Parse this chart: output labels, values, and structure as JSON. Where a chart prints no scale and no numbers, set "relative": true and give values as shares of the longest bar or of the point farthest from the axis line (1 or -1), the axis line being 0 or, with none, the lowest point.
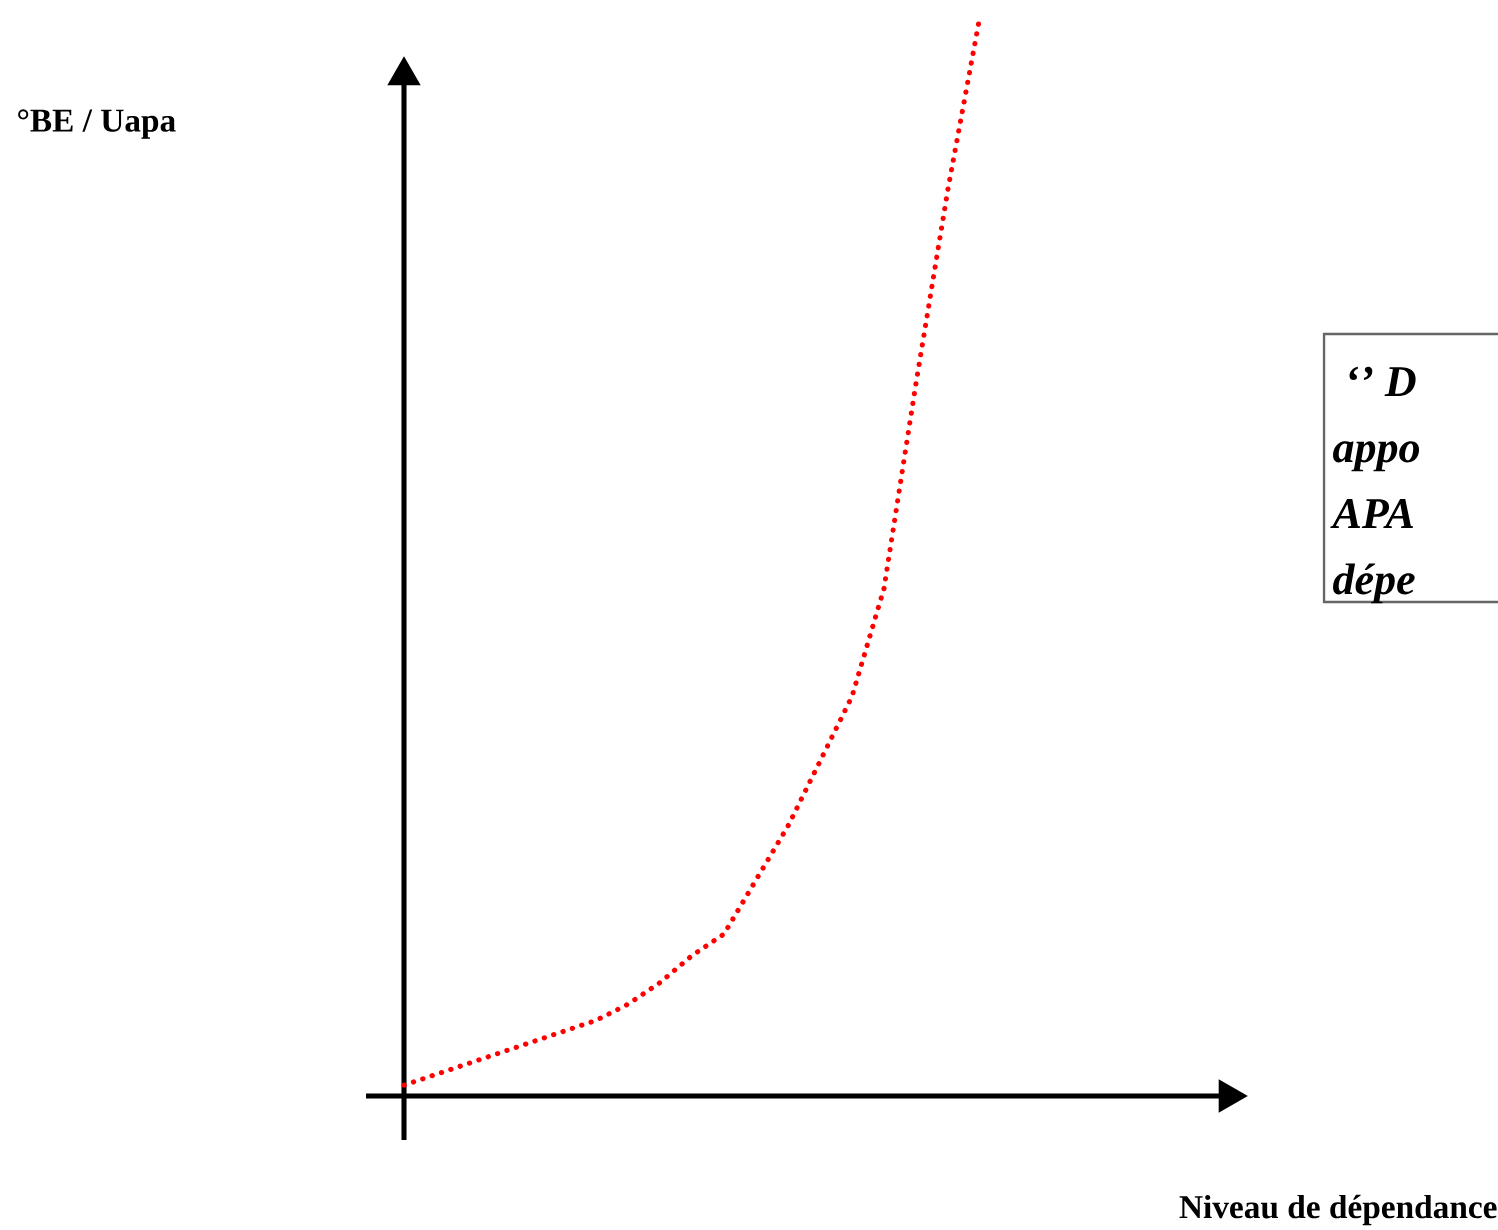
{
  "chart_data": {
    "type": "line",
    "relative": true,
    "categories": [
      null,
      null,
      null,
      null,
      null,
      null,
      null,
      null,
      null,
      null,
      null,
      null,
      null,
      null,
      null,
      null,
      null,
      null,
      null
    ],
    "values": [
      0.01,
      0.02,
      0.03,
      0.04,
      0.05,
      0.06,
      0.07,
      0.085,
      0.105,
      0.13,
      0.15,
      0.2,
      0.25,
      0.31,
      0.37,
      0.47,
      0.66,
      0.84,
      1.0
    ],
    "color": "#ff0000",
    "line_style": "dotted",
    "marker": "none",
    "annotations": [
      "°BE / Uapa",
      "Niveau de dépendance",
      "‘’ D",
      "appo",
      "APA",
      "dépe"
    ]
  }
}
